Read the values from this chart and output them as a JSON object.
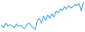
{
  "values": [
    -500,
    -600,
    -400,
    -550,
    -480,
    -520,
    -600,
    -450,
    -550,
    -500,
    -600,
    -650,
    -480,
    -400,
    -500,
    -600,
    -700,
    -300,
    -200,
    -400,
    -100,
    -300,
    -50,
    -200,
    0,
    -150,
    100,
    50,
    200,
    150,
    300,
    200,
    350,
    250,
    300,
    400,
    350,
    450,
    100,
    500
  ],
  "line_color": "#4da6d9",
  "bg_color": "#ffffff",
  "linewidth": 0.9
}
